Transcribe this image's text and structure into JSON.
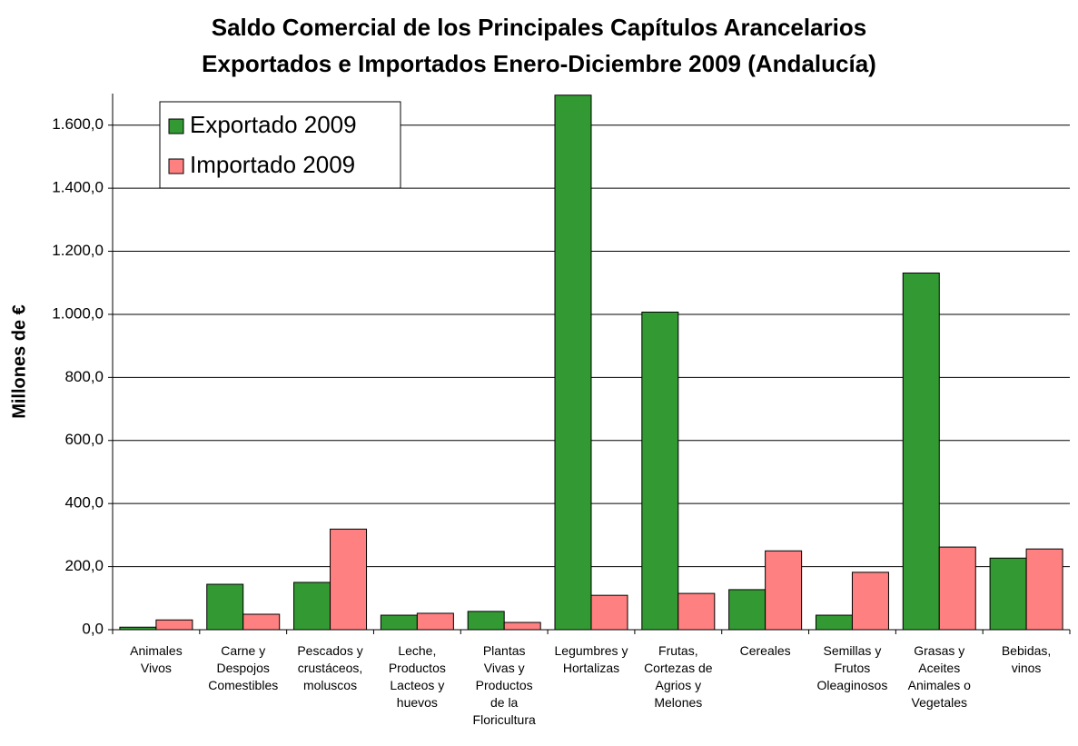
{
  "chart_data": {
    "type": "bar",
    "title": "Saldo Comercial de los Principales Capítulos Arancelarios\nExportados e Importados Enero-Diciembre  2009 (Andalucía)",
    "y_label": "Millones de €",
    "categories": [
      "Animales\nVivos",
      "Carne y\nDespojos\nComestibles",
      "Pescados y\ncrustáceos,\nmoluscos",
      "Leche,\nProductos\nLacteos y\nhuevos",
      "Plantas\nVivas y\nProductos\nde la\nFloricultura",
      "Legumbres y\nHortalizas",
      "Frutas,\nCortezas de\nAgrios y\nMelones",
      "Cereales",
      "Semillas y\nFrutos\nOleaginosos",
      "Grasas y\nAceites\nAnimales o\nVegetales",
      "Bebidas,\nvinos"
    ],
    "series": [
      {
        "name": "Exportado 2009",
        "color": "#339933",
        "values": [
          8,
          144,
          150,
          46,
          58,
          1695,
          1007,
          127,
          46,
          1131,
          227
        ]
      },
      {
        "name": "Importado 2009",
        "color": "#ff8080",
        "values": [
          31,
          49,
          319,
          52,
          23,
          109,
          115,
          250,
          182,
          262,
          256
        ]
      }
    ],
    "ylim": [
      0,
      1700
    ],
    "yticks": [
      {
        "value": 0,
        "label": "0,0"
      },
      {
        "value": 200,
        "label": "200,0"
      },
      {
        "value": 400,
        "label": "400,0"
      },
      {
        "value": 600,
        "label": "600,0"
      },
      {
        "value": 800,
        "label": "800,0"
      },
      {
        "value": 1000,
        "label": "1.000,0"
      },
      {
        "value": 1200,
        "label": "1.200,0"
      },
      {
        "value": 1400,
        "label": "1.400,0"
      },
      {
        "value": 1600,
        "label": "1.600,0"
      }
    ],
    "grid": true,
    "legend": "upper left"
  }
}
